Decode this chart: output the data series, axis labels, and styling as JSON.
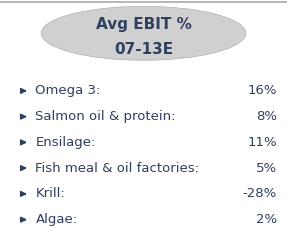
{
  "title_line1": "Avg EBIT %",
  "title_line2": "07-13E",
  "ellipse_color": "#d0d0d0",
  "ellipse_edge": "#b0b0b0",
  "items": [
    {
      "label": "Omega 3:",
      "value": "16%"
    },
    {
      "label": "Salmon oil & protein:",
      "value": "8%"
    },
    {
      "label": "Ensilage:",
      "value": "11%"
    },
    {
      "label": "Fish meal & oil factories:",
      "value": "5%"
    },
    {
      "label": "Krill:",
      "value": "-28%"
    },
    {
      "label": "Algae:",
      "value": "2%"
    }
  ],
  "arrow_color": "#2f3f5f",
  "label_color": "#2f3f5f",
  "value_color": "#2f3f5f",
  "bg_color": "#ffffff",
  "border_color": "#aaaaaa",
  "title_fontsize": 11,
  "item_fontsize": 9.5,
  "figsize": [
    2.87,
    2.48
  ],
  "dpi": 100
}
